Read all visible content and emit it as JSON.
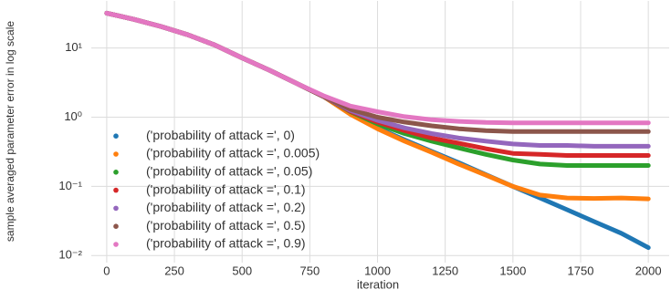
{
  "chart_data": {
    "type": "line",
    "ylabel": "sample averaged parameter error in log scale",
    "xlabel": "iteration",
    "x": [
      0,
      100,
      200,
      300,
      400,
      500,
      600,
      700,
      800,
      900,
      1000,
      1100,
      1200,
      1300,
      1400,
      1500,
      1600,
      1700,
      1800,
      1900,
      2000
    ],
    "series": [
      {
        "name": "('probability of attack =', 0)",
        "color": "#1f77b4",
        "values": [
          32,
          26,
          20.5,
          15.5,
          11,
          7.2,
          4.8,
          3.1,
          2.0,
          1.15,
          0.7,
          0.47,
          0.32,
          0.22,
          0.148,
          0.1,
          0.068,
          0.046,
          0.031,
          0.021,
          0.013
        ]
      },
      {
        "name": "('probability of attack =', 0.005)",
        "color": "#ff7f0e",
        "values": [
          32,
          26,
          20.5,
          15.5,
          11,
          7.2,
          4.8,
          3.1,
          2.0,
          1.1,
          0.68,
          0.45,
          0.31,
          0.21,
          0.145,
          0.1,
          0.075,
          0.068,
          0.067,
          0.068,
          0.066
        ]
      },
      {
        "name": "('probability of attack =', 0.05)",
        "color": "#2ca02c",
        "values": [
          32,
          26,
          20.5,
          15.5,
          11,
          7.2,
          4.8,
          3.1,
          2.0,
          1.2,
          0.8,
          0.58,
          0.45,
          0.36,
          0.29,
          0.24,
          0.21,
          0.2,
          0.2,
          0.2,
          0.2
        ]
      },
      {
        "name": "('probability of attack =', 0.1)",
        "color": "#d62728",
        "values": [
          32,
          26,
          20.5,
          15.5,
          11,
          7.2,
          4.8,
          3.1,
          2.0,
          1.22,
          0.85,
          0.64,
          0.5,
          0.42,
          0.35,
          0.3,
          0.29,
          0.28,
          0.28,
          0.28,
          0.28
        ]
      },
      {
        "name": "('probability of attack =', 0.2)",
        "color": "#9467bd",
        "values": [
          32,
          26,
          20.5,
          15.5,
          11,
          7.2,
          4.8,
          3.1,
          2.0,
          1.25,
          0.9,
          0.7,
          0.58,
          0.5,
          0.45,
          0.41,
          0.39,
          0.39,
          0.38,
          0.38,
          0.38
        ]
      },
      {
        "name": "('probability of attack =', 0.5)",
        "color": "#8c564b",
        "values": [
          32,
          26,
          20.5,
          15.5,
          11,
          7.2,
          4.8,
          3.1,
          2.0,
          1.3,
          1.0,
          0.85,
          0.75,
          0.68,
          0.64,
          0.62,
          0.62,
          0.62,
          0.62,
          0.62,
          0.62
        ]
      },
      {
        "name": "('probability of attack =', 0.9)",
        "color": "#e377c2",
        "values": [
          32,
          26,
          20.5,
          15.5,
          11,
          7.2,
          4.8,
          3.1,
          2.05,
          1.45,
          1.2,
          1.02,
          0.92,
          0.87,
          0.84,
          0.83,
          0.83,
          0.83,
          0.83,
          0.83,
          0.83
        ]
      }
    ],
    "xlim": [
      -57,
      2077
    ],
    "ylim": [
      0.0079,
      48
    ],
    "ylog": true,
    "grid": true,
    "legend": "lower left",
    "xticks": [
      0,
      250,
      500,
      750,
      1000,
      1250,
      1500,
      1750,
      2000
    ],
    "yticks": [
      {
        "value": 0.01,
        "label": "10⁻²"
      },
      {
        "value": 0.1,
        "label": "10⁻¹"
      },
      {
        "value": 1,
        "label": "10⁰"
      },
      {
        "value": 10,
        "label": "10¹"
      }
    ]
  }
}
